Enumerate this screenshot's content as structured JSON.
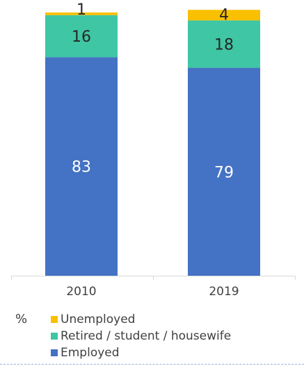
{
  "chart_data": {
    "type": "bar",
    "stacked": true,
    "categories": [
      "2010",
      "2019"
    ],
    "series": [
      {
        "name": "Employed",
        "values": [
          83,
          79
        ],
        "color": "#4472C4"
      },
      {
        "name": "Retired / student / housewife",
        "values": [
          16,
          18
        ],
        "color": "#3FC6A4"
      },
      {
        "name": "Unemployed",
        "values": [
          1,
          4
        ],
        "color": "#F9C000"
      }
    ],
    "ylim": [
      0,
      100
    ],
    "unit_label": "%",
    "legend_position": "bottom",
    "grid": false
  },
  "legend_order": [
    2,
    1,
    0
  ]
}
